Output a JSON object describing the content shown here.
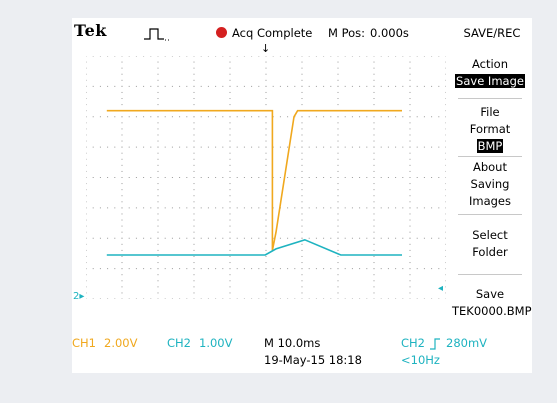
{
  "header": {
    "brand": "Tek",
    "acq_status": "Acq Complete",
    "mpos_label": "M Pos:",
    "mpos_value": "0.000s",
    "menu_title": "SAVE/REC"
  },
  "side_menu": {
    "action_label": "Action",
    "action_value": "Save Image",
    "file_format_line1": "File",
    "file_format_line2": "Format",
    "file_format_value": "BMP",
    "about_line1": "About",
    "about_line2": "Saving",
    "about_line3": "Images",
    "select_line1": "Select",
    "select_line2": "Folder",
    "save_label": "Save",
    "save_filename": "TEK0000.BMP"
  },
  "channels": {
    "ch1_name": "CH1",
    "ch1_scale": "2.00V",
    "ch2_name": "CH2",
    "ch2_scale": "1.00V",
    "ch2_marker": "2"
  },
  "status_bar": {
    "timebase": "M 10.0ms",
    "date": "19-May-15 18:18",
    "trigger_source": "CH2",
    "trigger_level": "280mV",
    "trigger_freq": "<10Hz"
  },
  "colors": {
    "ch1": "#f0a81e",
    "ch2": "#1eb3c0",
    "acq_dot": "#d42020",
    "grid": "#9a9a9a"
  },
  "chart_data": {
    "type": "line",
    "time_per_div_ms": 10,
    "volts_per_div": {
      "CH1": 2.0,
      "CH2": 1.0
    },
    "x_divisions": 10,
    "y_divisions": 8,
    "trigger_time_ms": 0,
    "series": [
      {
        "name": "CH1",
        "x_ms": [
          -47,
          -1,
          -1,
          0,
          5,
          6,
          35
        ],
        "divisions_from_center": [
          2.2,
          2.2,
          -2.4,
          -1.8,
          2.0,
          2.2,
          2.2
        ]
      },
      {
        "name": "CH2",
        "x_ms": [
          -47,
          -3,
          0,
          8,
          18,
          35
        ],
        "divisions_from_center": [
          -2.55,
          -2.55,
          -2.35,
          -2.05,
          -2.55,
          -2.55
        ]
      }
    ]
  }
}
